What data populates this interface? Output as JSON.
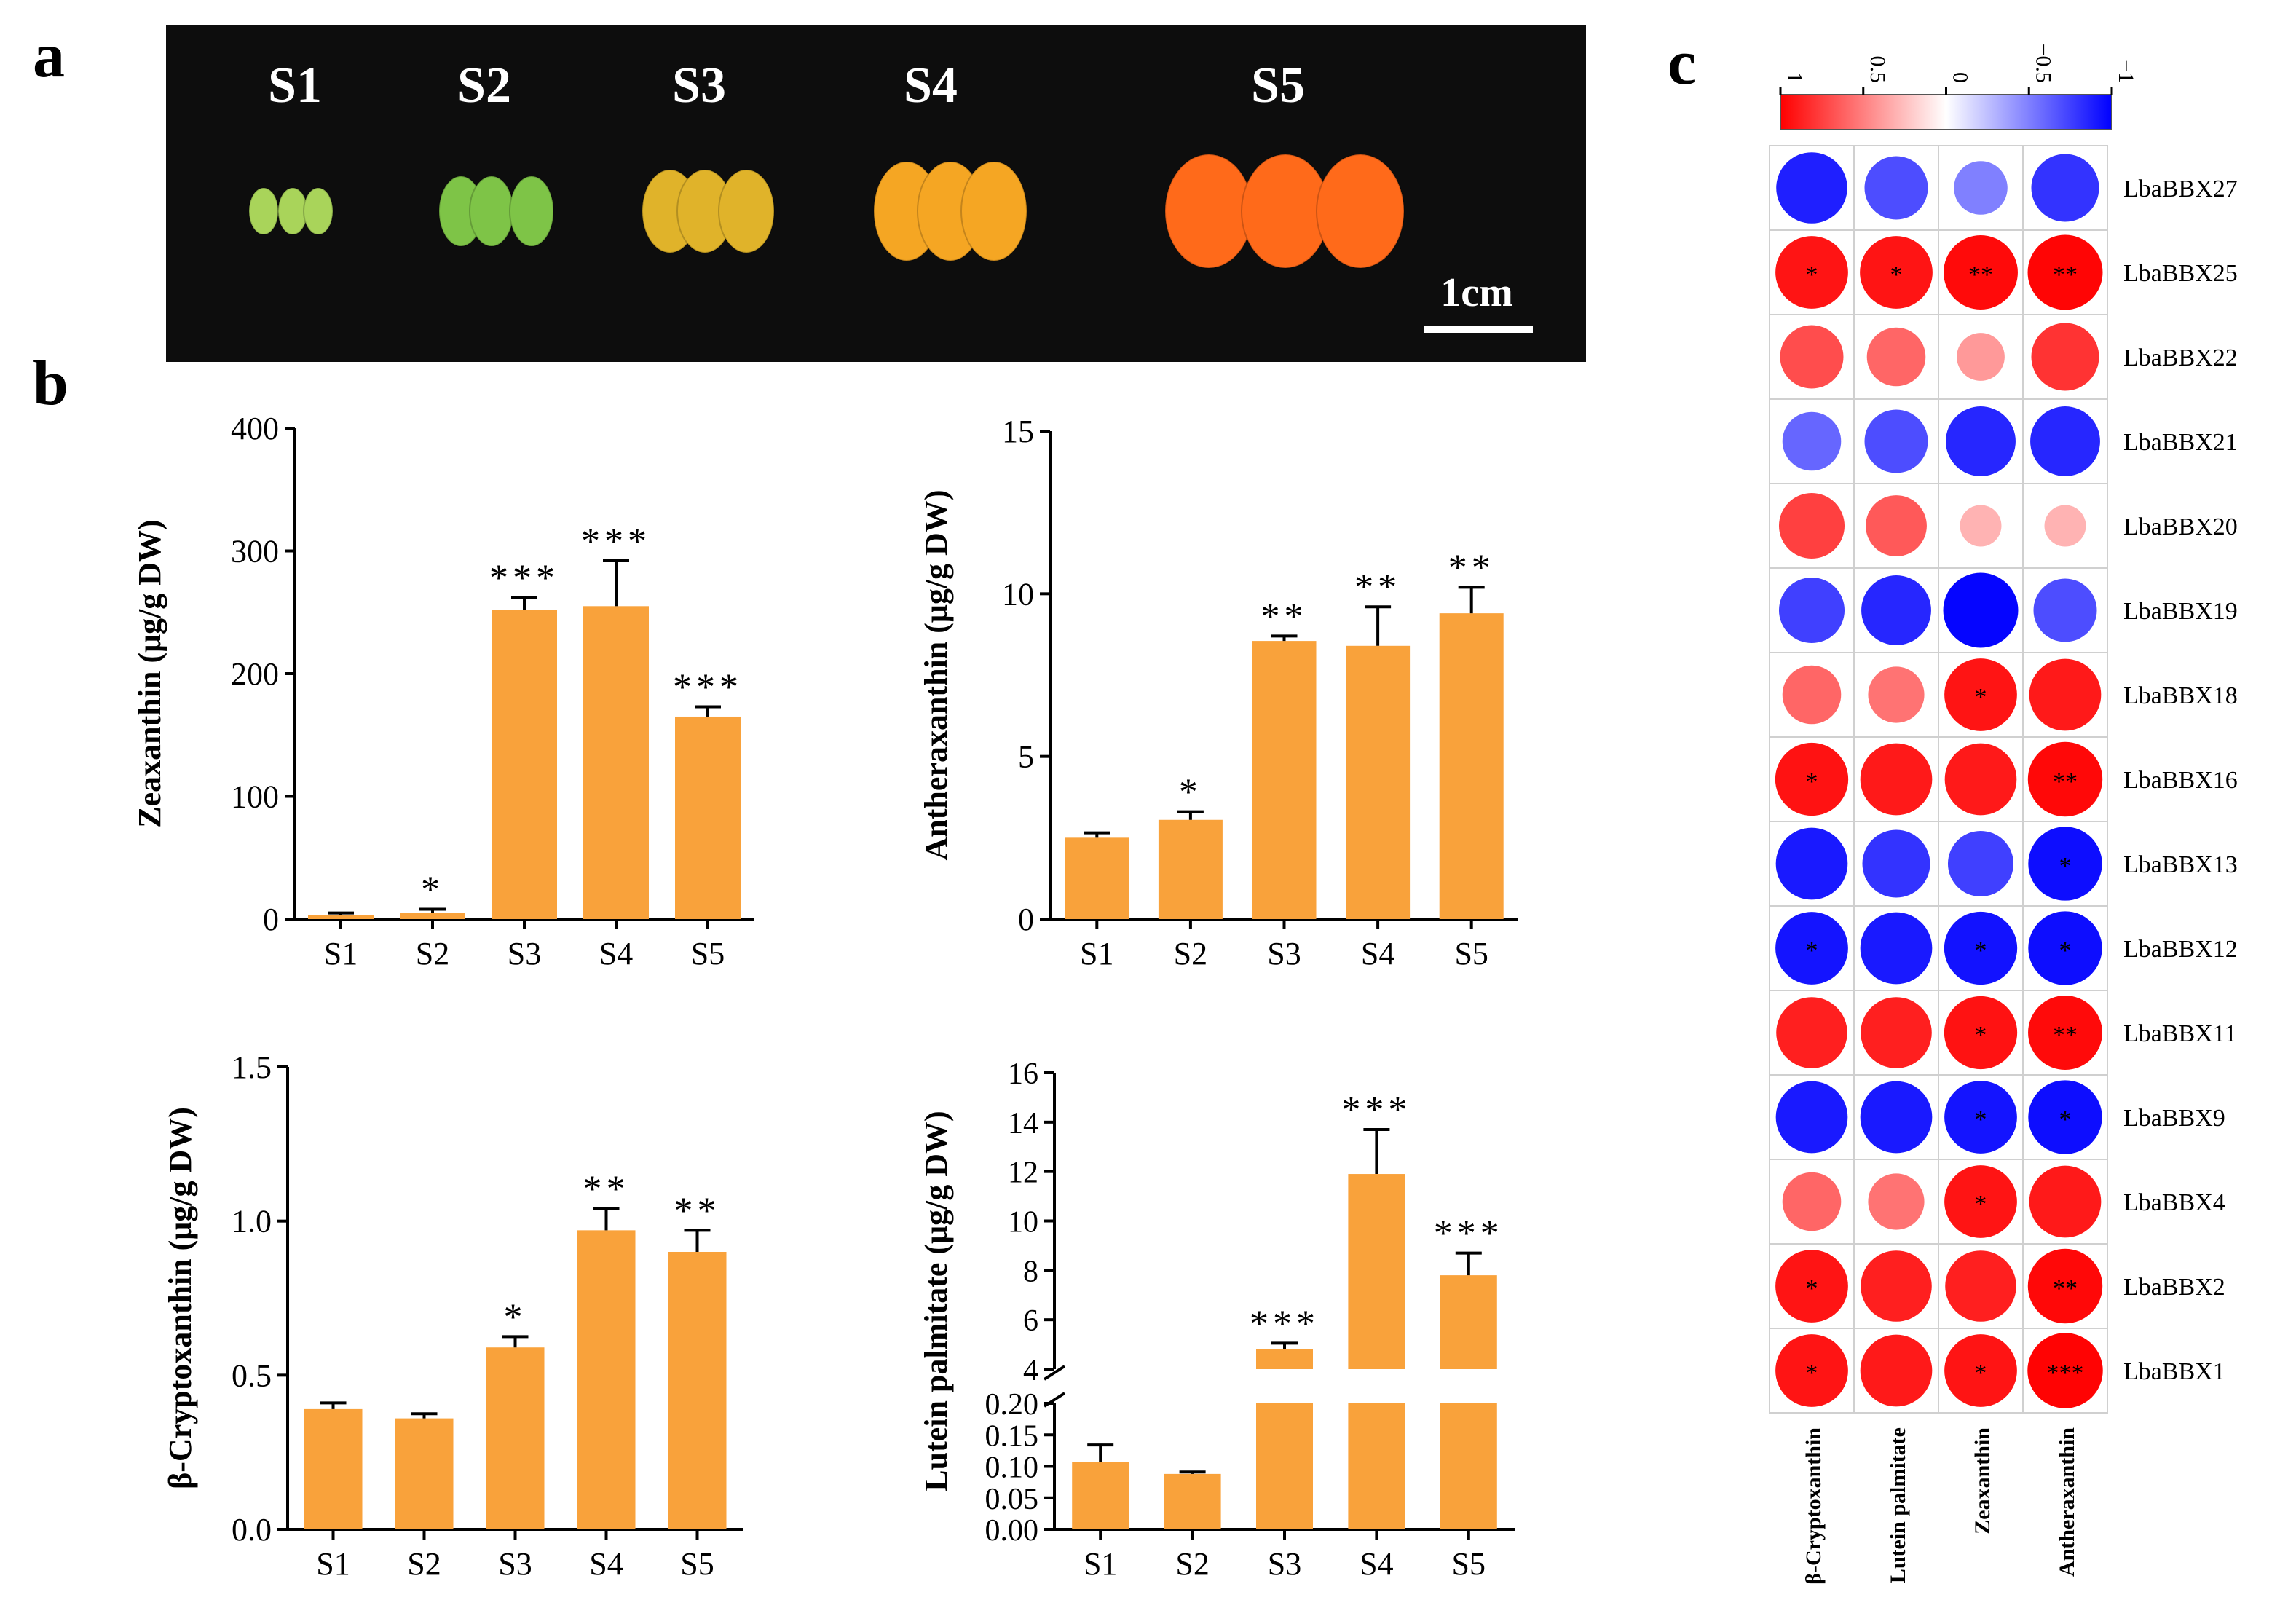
{
  "panels": {
    "a": {
      "letter": "a",
      "stages": [
        "S1",
        "S2",
        "S3",
        "S4",
        "S5"
      ],
      "scale_bar_label": "1cm",
      "fruit_colors": [
        "#a9d45a",
        "#7ec447",
        "#e0b32a",
        "#f5a623",
        "#ff6a1a"
      ],
      "background_color": "#0d0d0d"
    },
    "b": {
      "letter": "b"
    },
    "c": {
      "letter": "c"
    }
  },
  "colors": {
    "bar": "#f9a23b",
    "axis": "#000000",
    "positive": "#ff0000",
    "negative": "#0000ff"
  },
  "chart_data": [
    {
      "id": "zeaxanthin",
      "type": "bar",
      "categories": [
        "S1",
        "S2",
        "S3",
        "S4",
        "S5"
      ],
      "values": [
        3,
        5,
        252,
        255,
        165
      ],
      "errors": [
        2,
        3,
        10,
        37,
        8
      ],
      "significance": [
        "",
        "*",
        "***",
        "***",
        "***"
      ],
      "ylabel": "Zeaxanthin (μg/g DW)",
      "ylim": [
        0,
        400
      ],
      "yticks": [
        0,
        100,
        200,
        300,
        400
      ]
    },
    {
      "id": "antheraxanthin",
      "type": "bar",
      "categories": [
        "S1",
        "S2",
        "S3",
        "S4",
        "S5"
      ],
      "values": [
        2.5,
        3.05,
        8.55,
        8.4,
        9.4
      ],
      "errors": [
        0.15,
        0.25,
        0.15,
        1.2,
        0.8
      ],
      "significance": [
        "",
        "*",
        "**",
        "**",
        "**"
      ],
      "ylabel": "Antheraxanthin (μg/g DW)",
      "ylim": [
        0,
        15
      ],
      "yticks": [
        0,
        5,
        10,
        15
      ]
    },
    {
      "id": "cryptoxanthin",
      "type": "bar",
      "categories": [
        "S1",
        "S2",
        "S3",
        "S4",
        "S5"
      ],
      "values": [
        0.39,
        0.36,
        0.59,
        0.97,
        0.9
      ],
      "errors": [
        0.02,
        0.015,
        0.035,
        0.07,
        0.07
      ],
      "significance": [
        "",
        "",
        "*",
        "**",
        "**"
      ],
      "ylabel": "β-Cryptoxanthin (μg/g DW)",
      "ylim": [
        0,
        1.5
      ],
      "yticks": [
        "0.0",
        "0.5",
        "1.0",
        "1.5"
      ]
    },
    {
      "id": "lutein",
      "type": "bar-broken-axis",
      "categories": [
        "S1",
        "S2",
        "S3",
        "S4",
        "S5"
      ],
      "values": [
        0.107,
        0.088,
        4.8,
        11.9,
        7.8
      ],
      "errors": [
        0.027,
        0.003,
        0.25,
        1.8,
        0.9
      ],
      "significance": [
        "",
        "",
        "***",
        "***",
        "***"
      ],
      "ylabel": "Lutein palmitate (μg/g DW)",
      "upper_ylim": [
        4,
        16
      ],
      "upper_yticks": [
        "4",
        "6",
        "8",
        "10",
        "12",
        "14",
        "16"
      ],
      "lower_ylim": [
        0,
        0.2
      ],
      "lower_yticks": [
        "0.00",
        "0.05",
        "0.10",
        "0.15",
        "0.20"
      ]
    },
    {
      "id": "correlation",
      "type": "heatmap",
      "title": "",
      "rows": [
        "LbaBBX27",
        "LbaBBX25",
        "LbaBBX22",
        "LbaBBX21",
        "LbaBBX20",
        "LbaBBX19",
        "LbaBBX18",
        "LbaBBX16",
        "LbaBBX13",
        "LbaBBX12",
        "LbaBBX11",
        "LbaBBX9",
        "LbaBBX4",
        "LbaBBX2",
        "LbaBBX1"
      ],
      "columns": [
        "β-Cryptoxanthin",
        "Lutein palmitate",
        "Zeaxanthin",
        "Antheraxanthin"
      ],
      "values": [
        [
          -0.88,
          -0.7,
          -0.5,
          -0.8
        ],
        [
          0.92,
          0.92,
          0.96,
          0.98
        ],
        [
          0.7,
          0.6,
          0.4,
          0.8
        ],
        [
          -0.6,
          -0.7,
          -0.85,
          -0.85
        ],
        [
          0.75,
          0.65,
          0.3,
          0.3
        ],
        [
          -0.75,
          -0.85,
          -0.98,
          -0.7
        ],
        [
          0.6,
          0.55,
          0.92,
          0.9
        ],
        [
          0.93,
          0.9,
          0.9,
          0.97
        ],
        [
          -0.9,
          -0.8,
          -0.75,
          -0.95
        ],
        [
          -0.92,
          -0.9,
          -0.93,
          -0.95
        ],
        [
          0.88,
          0.88,
          0.93,
          0.96
        ],
        [
          -0.9,
          -0.9,
          -0.92,
          -0.95
        ],
        [
          0.6,
          0.55,
          0.92,
          0.9
        ],
        [
          0.92,
          0.88,
          0.88,
          0.97
        ],
        [
          0.92,
          0.9,
          0.92,
          0.99
        ]
      ],
      "significance": [
        [
          "",
          "",
          "",
          ""
        ],
        [
          "*",
          "*",
          "**",
          "**"
        ],
        [
          "",
          "",
          "",
          ""
        ],
        [
          "",
          "",
          "",
          ""
        ],
        [
          "",
          "",
          "",
          ""
        ],
        [
          "",
          "",
          "",
          ""
        ],
        [
          "",
          "",
          "*",
          ""
        ],
        [
          "*",
          "",
          "",
          "**"
        ],
        [
          "",
          "",
          "",
          "*"
        ],
        [
          "*",
          "",
          "*",
          "*"
        ],
        [
          "",
          "",
          "*",
          "**"
        ],
        [
          "",
          "",
          "*",
          "*"
        ],
        [
          "",
          "",
          "*",
          ""
        ],
        [
          "*",
          "",
          "",
          "**"
        ],
        [
          "*",
          "",
          "*",
          "***"
        ]
      ],
      "colorbar_ticks": [
        "1",
        "0.5",
        "0",
        "−0.5",
        "−1"
      ],
      "value_range": [
        -1,
        1
      ]
    }
  ]
}
